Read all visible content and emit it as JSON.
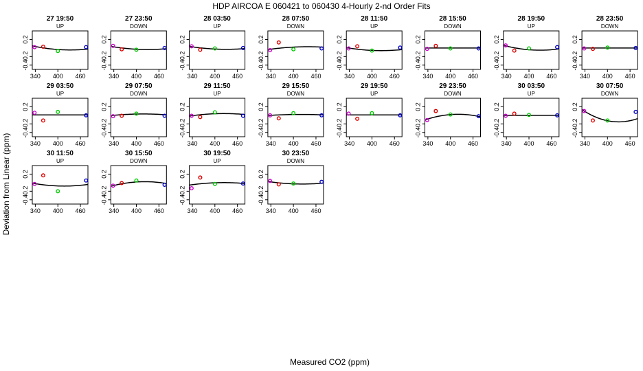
{
  "chart_data": {
    "type": "scatter",
    "title": "HDP   AIRCOA E    060421 to 060430   4-Hourly 2-nd Order Fits",
    "xlabel": "Measured CO2 (ppm)",
    "ylabel": "Deviation from Linear (ppm)",
    "xlim": [
      332,
      480
    ],
    "ylim": [
      -0.5,
      0.4
    ],
    "xticks": [
      "340",
      "400",
      "460"
    ],
    "yticks": [
      "0.2",
      "-0.2",
      "-0.4"
    ],
    "point_x": [
      338,
      361,
      400,
      475
    ],
    "point_colors": [
      "#cc00cc",
      "#dd0000",
      "#00cc00",
      "#0000cc"
    ],
    "panels": [
      {
        "title": "27 19:50",
        "direction": "UP",
        "y": [
          0.02,
          0.03,
          -0.07,
          0.02
        ],
        "curve": [
          0.04,
          -0.0018,
          9.5e-06
        ]
      },
      {
        "title": "27 23:50",
        "direction": "DOWN",
        "y": [
          0.05,
          -0.03,
          -0.04,
          0.0
        ],
        "curve": [
          0.03,
          -0.0014,
          7.5e-06
        ]
      },
      {
        "title": "28 03:50",
        "direction": "UP",
        "y": [
          0.04,
          -0.04,
          -0.01,
          0.0
        ],
        "curve": [
          0.03,
          -0.0013,
          7e-06
        ]
      },
      {
        "title": "28 07:50",
        "direction": "DOWN",
        "y": [
          -0.05,
          0.13,
          -0.03,
          -0.01
        ],
        "curve": [
          -0.03,
          0.0012,
          -6e-06
        ]
      },
      {
        "title": "28 11:50",
        "direction": "UP",
        "y": [
          -0.01,
          0.04,
          -0.06,
          0.01
        ],
        "curve": [
          0.0,
          -0.0014,
          8e-06
        ]
      },
      {
        "title": "28 15:50",
        "direction": "DOWN",
        "y": [
          -0.02,
          0.05,
          -0.01,
          -0.01
        ],
        "curve": [
          0.0,
          0.0,
          0.0
        ]
      },
      {
        "title": "28 19:50",
        "direction": "UP",
        "y": [
          0.06,
          -0.06,
          -0.01,
          0.02
        ],
        "curve": [
          0.05,
          -0.0022,
          1.2e-05
        ]
      },
      {
        "title": "28 23:50",
        "direction": "DOWN",
        "y": [
          -0.01,
          -0.02,
          0.01,
          0.0
        ],
        "curve": [
          0.0,
          0.0,
          0.0
        ]
      },
      {
        "title": "29 03:50",
        "direction": "UP",
        "y": [
          0.06,
          -0.12,
          0.08,
          0.0
        ],
        "curve": [
          0.01,
          0.0,
          0.0
        ]
      },
      {
        "title": "29 07:50",
        "direction": "DOWN",
        "y": [
          -0.02,
          -0.01,
          0.04,
          -0.01
        ],
        "curve": [
          0.0,
          0.0008,
          -5e-06
        ]
      },
      {
        "title": "29 11:50",
        "direction": "UP",
        "y": [
          -0.01,
          -0.04,
          0.07,
          -0.01
        ],
        "curve": [
          -0.01,
          0.0012,
          -7e-06
        ]
      },
      {
        "title": "29 15:50",
        "direction": "DOWN",
        "y": [
          0.0,
          -0.07,
          0.05,
          0.0
        ],
        "curve": [
          0.0,
          0.0005,
          -3e-06
        ]
      },
      {
        "title": "29 19:50",
        "direction": "UP",
        "y": [
          0.04,
          -0.08,
          0.05,
          0.0
        ],
        "curve": [
          0.01,
          0.0,
          0.0
        ]
      },
      {
        "title": "29 23:50",
        "direction": "DOWN",
        "y": [
          -0.11,
          0.1,
          0.02,
          -0.02
        ],
        "curve": [
          -0.09,
          0.0028,
          -1.7e-05
        ]
      },
      {
        "title": "30 03:50",
        "direction": "UP",
        "y": [
          -0.01,
          0.04,
          0.01,
          0.0
        ],
        "curve": [
          0.0,
          0.0,
          0.0
        ]
      },
      {
        "title": "30 07:50",
        "direction": "DOWN",
        "y": [
          0.1,
          -0.12,
          -0.12,
          0.08
        ],
        "curve": [
          0.1,
          -0.0055,
          3e-05
        ]
      },
      {
        "title": "30 11:50",
        "direction": "UP",
        "y": [
          -0.03,
          0.17,
          -0.2,
          0.05
        ],
        "curve": [
          -0.02,
          -0.0015,
          9.5e-06
        ]
      },
      {
        "title": "30 15:50",
        "direction": "DOWN",
        "y": [
          -0.07,
          -0.01,
          0.05,
          -0.05
        ],
        "curve": [
          -0.07,
          0.0022,
          -1.3e-05
        ]
      },
      {
        "title": "30 19:50",
        "direction": "UP",
        "y": [
          -0.13,
          0.12,
          -0.03,
          -0.02
        ],
        "curve": [
          -0.05,
          0.0012,
          -7e-06
        ]
      },
      {
        "title": "30 23:50",
        "direction": "DOWN",
        "y": [
          0.04,
          -0.04,
          -0.02,
          0.02
        ],
        "curve": [
          0.02,
          -0.0012,
          7e-06
        ]
      }
    ]
  }
}
